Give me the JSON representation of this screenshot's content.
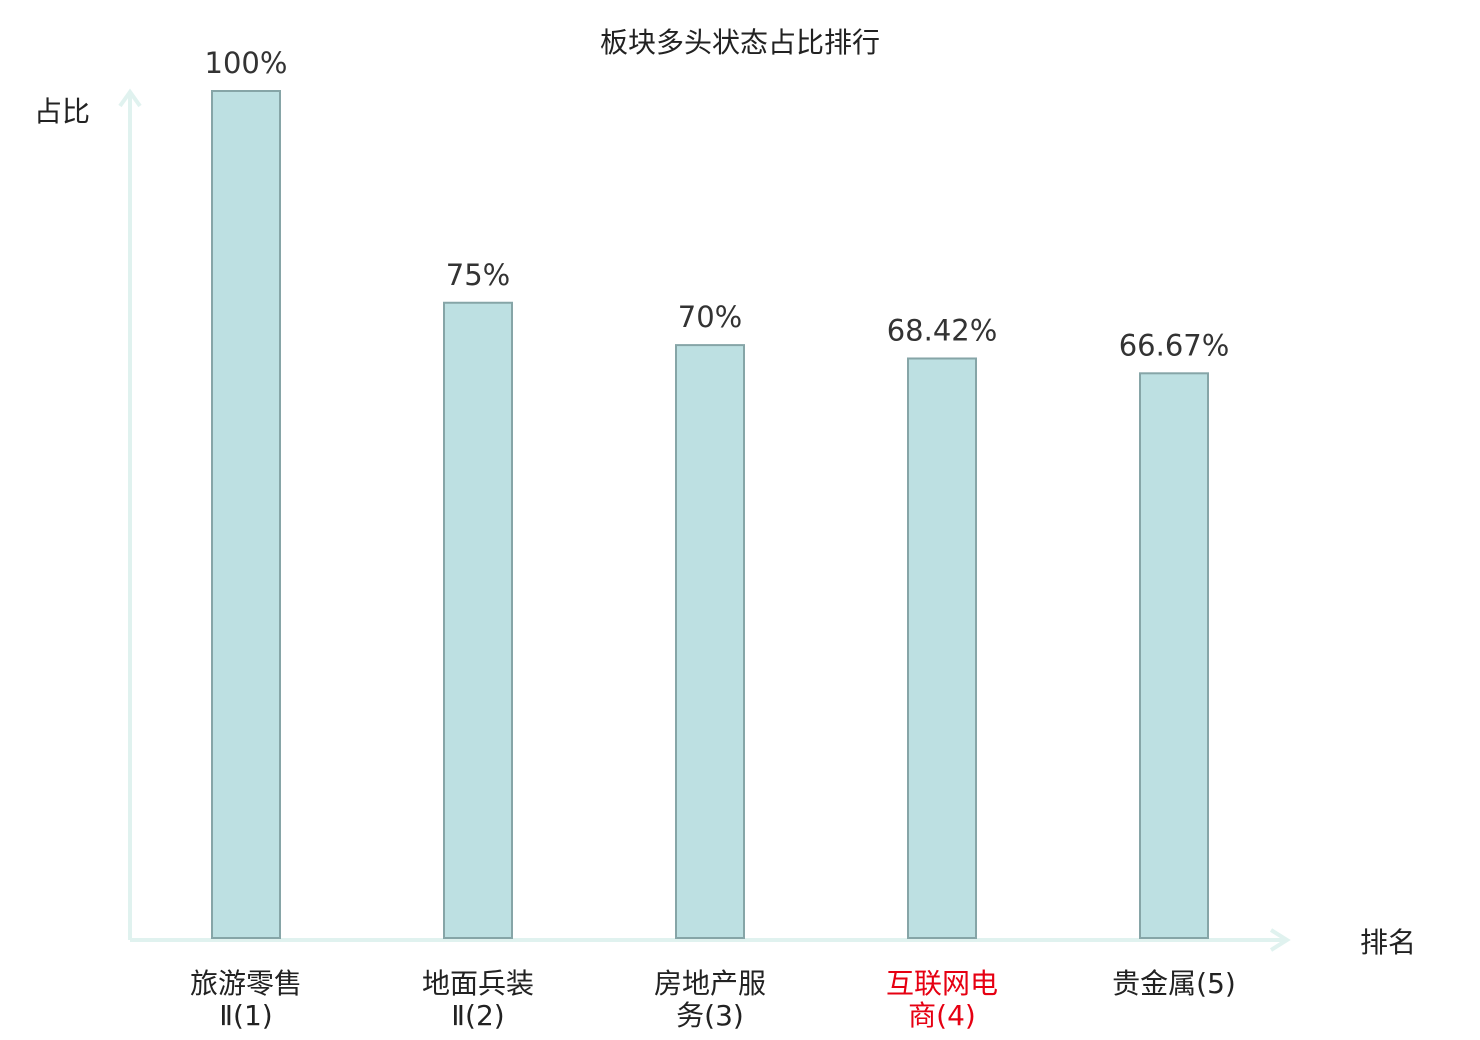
{
  "chart_data": {
    "type": "bar",
    "title": "板块多头状态占比排行",
    "ylabel": "占比",
    "xlabel": "排名",
    "ylim": [
      0,
      100
    ],
    "categories": [
      {
        "lines": [
          "旅游零售",
          "Ⅱ(1)"
        ],
        "highlight": false
      },
      {
        "lines": [
          "地面兵装",
          "Ⅱ(2)"
        ],
        "highlight": false
      },
      {
        "lines": [
          "房地产服",
          "务(3)"
        ],
        "highlight": false
      },
      {
        "lines": [
          "互联网电",
          "商(4)"
        ],
        "highlight": true
      },
      {
        "lines": [
          "贵金属(5)"
        ],
        "highlight": false
      }
    ],
    "values": [
      100,
      75,
      70,
      68.42,
      66.67
    ],
    "value_labels": [
      "100%",
      "75%",
      "70%",
      "68.42%",
      "66.67%"
    ],
    "grid": false,
    "colors": {
      "bar_fill": "#bde0e2",
      "bar_stroke": "#86a5a7",
      "axis": "#e0f2ef",
      "label_text": "#222222",
      "highlight_text": "#e60012"
    }
  }
}
